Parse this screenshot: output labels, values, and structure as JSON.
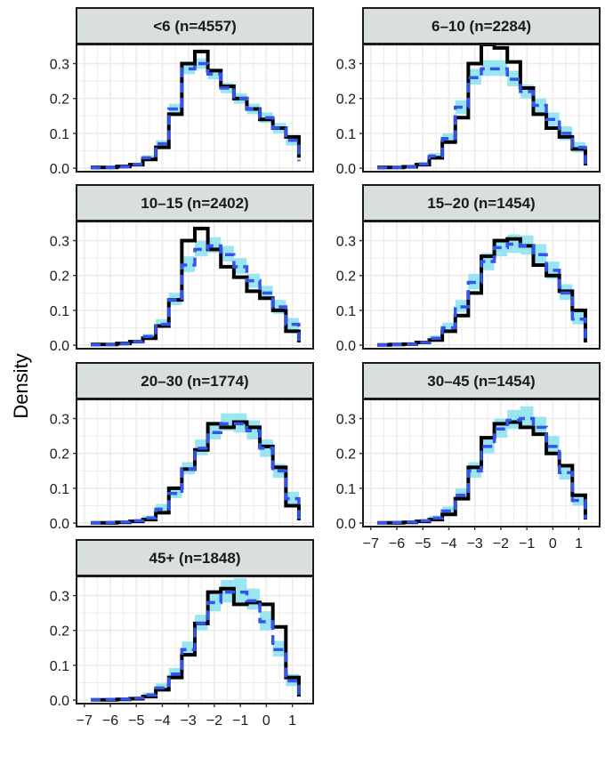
{
  "chart_data": {
    "type": "line",
    "ylabel": "Density",
    "xlabel": "",
    "xlim": [
      -7.3,
      1.8
    ],
    "ylim": [
      -0.01,
      0.355
    ],
    "xticks": [
      -7,
      -6,
      -5,
      -4,
      -3,
      -2,
      -1,
      0,
      1
    ],
    "yticks": [
      0.0,
      0.1,
      0.2,
      0.3
    ],
    "ytick_labels": [
      "0.0",
      "0.1",
      "0.2",
      "0.3"
    ],
    "grid": true,
    "colors": {
      "observed": "#000000",
      "predicted": "#3355ee",
      "band": "#99e6f2",
      "strip_bg": "#d9dede",
      "grid": "#ebebeb"
    },
    "series_styles": {
      "observed": "solid black step line",
      "predicted": "dashed blue step line",
      "band": "cyan interval band"
    },
    "bin_edges": [
      -6.75,
      -6.25,
      -5.75,
      -5.25,
      -4.75,
      -4.25,
      -3.75,
      -3.25,
      -2.75,
      -2.25,
      -1.75,
      -1.25,
      -0.75,
      -0.25,
      0.25,
      0.75,
      1.25
    ],
    "panels": [
      {
        "label": "<6 (n=4557)",
        "observed": [
          0.002,
          0.002,
          0.005,
          0.01,
          0.025,
          0.06,
          0.155,
          0.3,
          0.335,
          0.28,
          0.235,
          0.2,
          0.17,
          0.14,
          0.115,
          0.09,
          0.03
        ],
        "predicted": [
          0.001,
          0.002,
          0.004,
          0.011,
          0.03,
          0.07,
          0.17,
          0.285,
          0.3,
          0.27,
          0.23,
          0.2,
          0.17,
          0.145,
          0.115,
          0.08,
          0.02
        ],
        "band_low": [
          0.0,
          0.0,
          0.002,
          0.008,
          0.025,
          0.06,
          0.155,
          0.27,
          0.285,
          0.255,
          0.215,
          0.185,
          0.155,
          0.13,
          0.1,
          0.065,
          0.012
        ],
        "band_high": [
          0.003,
          0.004,
          0.007,
          0.015,
          0.037,
          0.08,
          0.185,
          0.3,
          0.315,
          0.285,
          0.245,
          0.215,
          0.185,
          0.16,
          0.13,
          0.095,
          0.03
        ]
      },
      {
        "label": "6–10 (n=2284)",
        "observed": [
          0.002,
          0.002,
          0.004,
          0.01,
          0.03,
          0.075,
          0.145,
          0.3,
          0.355,
          0.345,
          0.305,
          0.23,
          0.155,
          0.115,
          0.09,
          0.055,
          0.008
        ],
        "predicted": [
          0.001,
          0.002,
          0.004,
          0.012,
          0.035,
          0.085,
          0.175,
          0.26,
          0.285,
          0.285,
          0.255,
          0.22,
          0.18,
          0.14,
          0.1,
          0.06,
          0.012
        ],
        "band_low": [
          0.0,
          0.0,
          0.002,
          0.008,
          0.028,
          0.072,
          0.155,
          0.24,
          0.265,
          0.265,
          0.235,
          0.2,
          0.16,
          0.12,
          0.08,
          0.045,
          0.005
        ],
        "band_high": [
          0.003,
          0.004,
          0.007,
          0.017,
          0.043,
          0.1,
          0.195,
          0.285,
          0.31,
          0.31,
          0.28,
          0.24,
          0.2,
          0.16,
          0.12,
          0.075,
          0.02
        ]
      },
      {
        "label": "10–15 (n=2402)",
        "observed": [
          0.002,
          0.002,
          0.005,
          0.01,
          0.02,
          0.055,
          0.13,
          0.3,
          0.335,
          0.275,
          0.225,
          0.195,
          0.155,
          0.135,
          0.1,
          0.04,
          0.008
        ],
        "predicted": [
          0.001,
          0.002,
          0.004,
          0.01,
          0.025,
          0.06,
          0.13,
          0.23,
          0.275,
          0.285,
          0.26,
          0.225,
          0.185,
          0.15,
          0.11,
          0.06,
          0.012
        ],
        "band_low": [
          0.0,
          0.0,
          0.002,
          0.007,
          0.02,
          0.05,
          0.115,
          0.21,
          0.255,
          0.265,
          0.24,
          0.205,
          0.165,
          0.13,
          0.09,
          0.045,
          0.005
        ],
        "band_high": [
          0.003,
          0.004,
          0.007,
          0.014,
          0.032,
          0.075,
          0.15,
          0.255,
          0.3,
          0.31,
          0.285,
          0.25,
          0.205,
          0.17,
          0.13,
          0.078,
          0.02
        ]
      },
      {
        "label": "15–20 (n=1454)",
        "observed": [
          0.001,
          0.002,
          0.003,
          0.008,
          0.015,
          0.04,
          0.085,
          0.15,
          0.255,
          0.3,
          0.305,
          0.285,
          0.23,
          0.2,
          0.155,
          0.1,
          0.008
        ],
        "predicted": [
          0.001,
          0.002,
          0.003,
          0.008,
          0.02,
          0.05,
          0.11,
          0.18,
          0.24,
          0.28,
          0.29,
          0.285,
          0.26,
          0.215,
          0.15,
          0.075,
          0.012
        ],
        "band_low": [
          0.0,
          0.0,
          0.001,
          0.005,
          0.014,
          0.04,
          0.095,
          0.16,
          0.215,
          0.255,
          0.265,
          0.26,
          0.235,
          0.19,
          0.13,
          0.06,
          0.005
        ],
        "band_high": [
          0.003,
          0.004,
          0.006,
          0.013,
          0.028,
          0.065,
          0.13,
          0.205,
          0.265,
          0.305,
          0.318,
          0.315,
          0.29,
          0.24,
          0.175,
          0.095,
          0.02
        ]
      },
      {
        "label": "20–30 (n=1774)",
        "observed": [
          0.001,
          0.001,
          0.002,
          0.005,
          0.01,
          0.03,
          0.1,
          0.155,
          0.21,
          0.285,
          0.275,
          0.29,
          0.275,
          0.22,
          0.16,
          0.05,
          0.008
        ],
        "predicted": [
          0.001,
          0.002,
          0.003,
          0.007,
          0.015,
          0.04,
          0.085,
          0.155,
          0.215,
          0.26,
          0.285,
          0.285,
          0.265,
          0.215,
          0.15,
          0.07,
          0.012
        ],
        "band_low": [
          0.0,
          0.0,
          0.001,
          0.004,
          0.01,
          0.03,
          0.072,
          0.14,
          0.195,
          0.24,
          0.265,
          0.26,
          0.24,
          0.19,
          0.13,
          0.055,
          0.005
        ],
        "band_high": [
          0.002,
          0.004,
          0.005,
          0.011,
          0.022,
          0.055,
          0.105,
          0.175,
          0.24,
          0.29,
          0.315,
          0.315,
          0.295,
          0.24,
          0.17,
          0.09,
          0.02
        ]
      },
      {
        "label": "30–45 (n=1454)",
        "observed": [
          0.001,
          0.001,
          0.002,
          0.005,
          0.01,
          0.025,
          0.07,
          0.16,
          0.245,
          0.285,
          0.29,
          0.275,
          0.255,
          0.2,
          0.165,
          0.08,
          0.01
        ],
        "predicted": [
          0.001,
          0.002,
          0.003,
          0.007,
          0.015,
          0.035,
          0.08,
          0.15,
          0.22,
          0.27,
          0.295,
          0.3,
          0.275,
          0.22,
          0.145,
          0.065,
          0.012
        ],
        "band_low": [
          0.0,
          0.0,
          0.001,
          0.004,
          0.01,
          0.026,
          0.066,
          0.13,
          0.2,
          0.245,
          0.27,
          0.275,
          0.25,
          0.195,
          0.125,
          0.05,
          0.005
        ],
        "band_high": [
          0.002,
          0.004,
          0.005,
          0.011,
          0.022,
          0.048,
          0.1,
          0.175,
          0.245,
          0.3,
          0.325,
          0.335,
          0.305,
          0.25,
          0.17,
          0.085,
          0.02
        ]
      },
      {
        "label": "45+ (n=1848)",
        "observed": [
          0.001,
          0.001,
          0.002,
          0.004,
          0.01,
          0.03,
          0.065,
          0.13,
          0.22,
          0.31,
          0.32,
          0.275,
          0.28,
          0.275,
          0.21,
          0.065,
          0.01
        ],
        "predicted": [
          0.001,
          0.002,
          0.003,
          0.006,
          0.015,
          0.035,
          0.075,
          0.145,
          0.22,
          0.28,
          0.31,
          0.31,
          0.285,
          0.225,
          0.145,
          0.055,
          0.01
        ],
        "band_low": [
          0.0,
          0.0,
          0.001,
          0.003,
          0.01,
          0.026,
          0.062,
          0.125,
          0.2,
          0.255,
          0.28,
          0.28,
          0.26,
          0.2,
          0.125,
          0.04,
          0.004
        ],
        "band_high": [
          0.002,
          0.004,
          0.005,
          0.01,
          0.022,
          0.048,
          0.092,
          0.168,
          0.245,
          0.31,
          0.345,
          0.35,
          0.32,
          0.255,
          0.17,
          0.075,
          0.018
        ]
      }
    ]
  }
}
